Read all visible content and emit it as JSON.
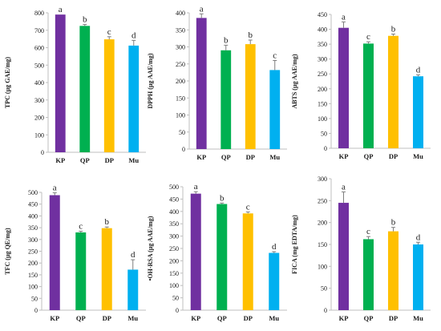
{
  "figure": {
    "colors": {
      "KP": "#7030A0",
      "QP": "#00B050",
      "DP": "#FFC000",
      "Mu": "#00B0F0"
    },
    "charts": [
      {
        "id": "tpc",
        "ylabel": "TPC (µg GAE/mg)"
      },
      {
        "id": "dpph",
        "ylabel": "DPPH (µg AAE/mg)"
      },
      {
        "id": "abts",
        "ylabel": "ABTS (µg AAE/mg)"
      },
      {
        "id": "tfc",
        "ylabel": "TFC (µg QE/mg)"
      },
      {
        "id": "ohrsa",
        "ylabel": "•OH-RSA (µg AAE/mg)"
      },
      {
        "id": "fica",
        "ylabel": "FICA (mg EDTA/mg)"
      }
    ]
  },
  "chart_data": [
    {
      "type": "bar",
      "title": "",
      "xlabel": "",
      "ylabel": "TPC (µg GAE/mg)",
      "categories": [
        "KP",
        "QP",
        "DP",
        "Mu"
      ],
      "values": [
        790,
        725,
        648,
        612
      ],
      "errors": [
        0,
        8,
        15,
        30
      ],
      "letters": [
        "a",
        "b",
        "c",
        "d"
      ],
      "ylim": [
        0,
        800
      ],
      "yticks": [
        0,
        100,
        200,
        300,
        400,
        500,
        600,
        700,
        800
      ],
      "grid": false
    },
    {
      "type": "bar",
      "title": "",
      "xlabel": "",
      "ylabel": "DPPH (µg AAE/mg)",
      "categories": [
        "KP",
        "QP",
        "DP",
        "Mu"
      ],
      "values": [
        385,
        290,
        308,
        232
      ],
      "errors": [
        12,
        15,
        12,
        28
      ],
      "letters": [
        "a",
        "b",
        "b",
        "c"
      ],
      "ylim": [
        0,
        400
      ],
      "yticks": [
        0,
        50,
        100,
        150,
        200,
        250,
        300,
        350,
        400
      ],
      "grid": false
    },
    {
      "type": "bar",
      "title": "",
      "xlabel": "",
      "ylabel": "ABTS (µg AAE/mg)",
      "categories": [
        "KP",
        "QP",
        "DP",
        "Mu"
      ],
      "values": [
        405,
        352,
        378,
        242
      ],
      "errors": [
        20,
        6,
        6,
        5
      ],
      "letters": [
        "a",
        "c",
        "b",
        "d"
      ],
      "ylim": [
        0,
        450
      ],
      "yticks": [
        0,
        50,
        100,
        150,
        200,
        250,
        300,
        350,
        400,
        450
      ],
      "grid": false
    },
    {
      "type": "bar",
      "title": "",
      "xlabel": "",
      "ylabel": "TFC (µg QE/mg)",
      "categories": [
        "KP",
        "QP",
        "DP",
        "Mu"
      ],
      "values": [
        488,
        330,
        348,
        172
      ],
      "errors": [
        10,
        5,
        5,
        42
      ],
      "letters": [
        "a",
        "c",
        "b",
        "d"
      ],
      "ylim": [
        0,
        500
      ],
      "yticks": [
        0,
        50,
        100,
        150,
        200,
        250,
        300,
        350,
        400,
        450,
        500
      ],
      "grid": false
    },
    {
      "type": "bar",
      "title": "",
      "xlabel": "",
      "ylabel": "•OH-RSA (µg AAE/mg)",
      "categories": [
        "KP",
        "QP",
        "DP",
        "Mu"
      ],
      "values": [
        472,
        430,
        392,
        232
      ],
      "errors": [
        8,
        4,
        6,
        5
      ],
      "letters": [
        "a",
        "b",
        "c",
        "d"
      ],
      "ylim": [
        0,
        500
      ],
      "yticks": [
        0,
        50,
        100,
        150,
        200,
        250,
        300,
        350,
        400,
        450,
        500
      ],
      "grid": false
    },
    {
      "type": "bar",
      "title": "",
      "xlabel": "",
      "ylabel": "FICA (mg EDTA/mg)",
      "categories": [
        "KP",
        "QP",
        "DP",
        "Mu"
      ],
      "values": [
        245,
        162,
        180,
        150
      ],
      "errors": [
        25,
        6,
        9,
        5
      ],
      "letters": [
        "a",
        "c",
        "b",
        "d"
      ],
      "ylim": [
        0,
        300
      ],
      "yticks": [
        0,
        50,
        100,
        150,
        200,
        250,
        300
      ],
      "grid": false
    }
  ]
}
